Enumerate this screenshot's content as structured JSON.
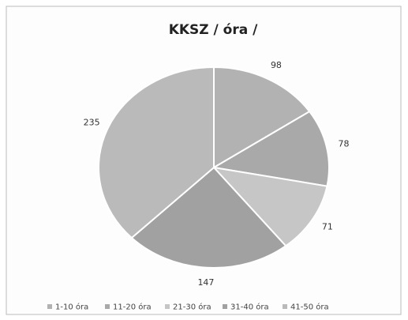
{
  "chart_data": {
    "type": "pie",
    "title": "KKSZ / óra /",
    "categories": [
      "1-10 óra",
      "11-20 óra",
      "21-30 óra",
      "31-40 óra",
      "41-50 óra"
    ],
    "values": [
      98,
      78,
      71,
      147,
      235
    ],
    "colors": [
      "#b2b2b2",
      "#a9a9a9",
      "#c6c6c6",
      "#a1a1a1",
      "#bababa"
    ],
    "legend": "bottom"
  }
}
